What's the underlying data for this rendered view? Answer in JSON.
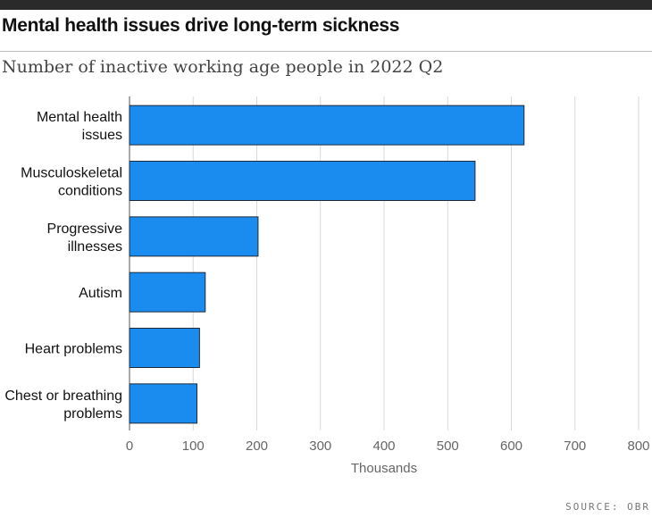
{
  "header": {
    "title": "Mental health issues drive long-term sickness",
    "subtitle": "Number of inactive working age people in 2022 Q2"
  },
  "source": "SOURCE: OBR",
  "colors": {
    "bar": "#1a8cf0",
    "bar_stroke": "#1f2b3a",
    "grid": "#d9d9d9",
    "topbar": "#2a2a2a"
  },
  "chart_data": {
    "type": "bar",
    "orientation": "horizontal",
    "categories": [
      [
        "Mental health",
        "issues"
      ],
      [
        "Musculoskeletal",
        "conditions"
      ],
      [
        "Progressive",
        "illnesses"
      ],
      [
        "Autism"
      ],
      [
        "Heart problems"
      ],
      [
        "Chest or breathing",
        "problems"
      ]
    ],
    "values": [
      620,
      543,
      202,
      119,
      110,
      106
    ],
    "xlabel": "Thousands",
    "xlim": [
      0,
      800
    ],
    "xticks": [
      0,
      100,
      200,
      300,
      400,
      500,
      600,
      700,
      800
    ],
    "grid": true
  }
}
